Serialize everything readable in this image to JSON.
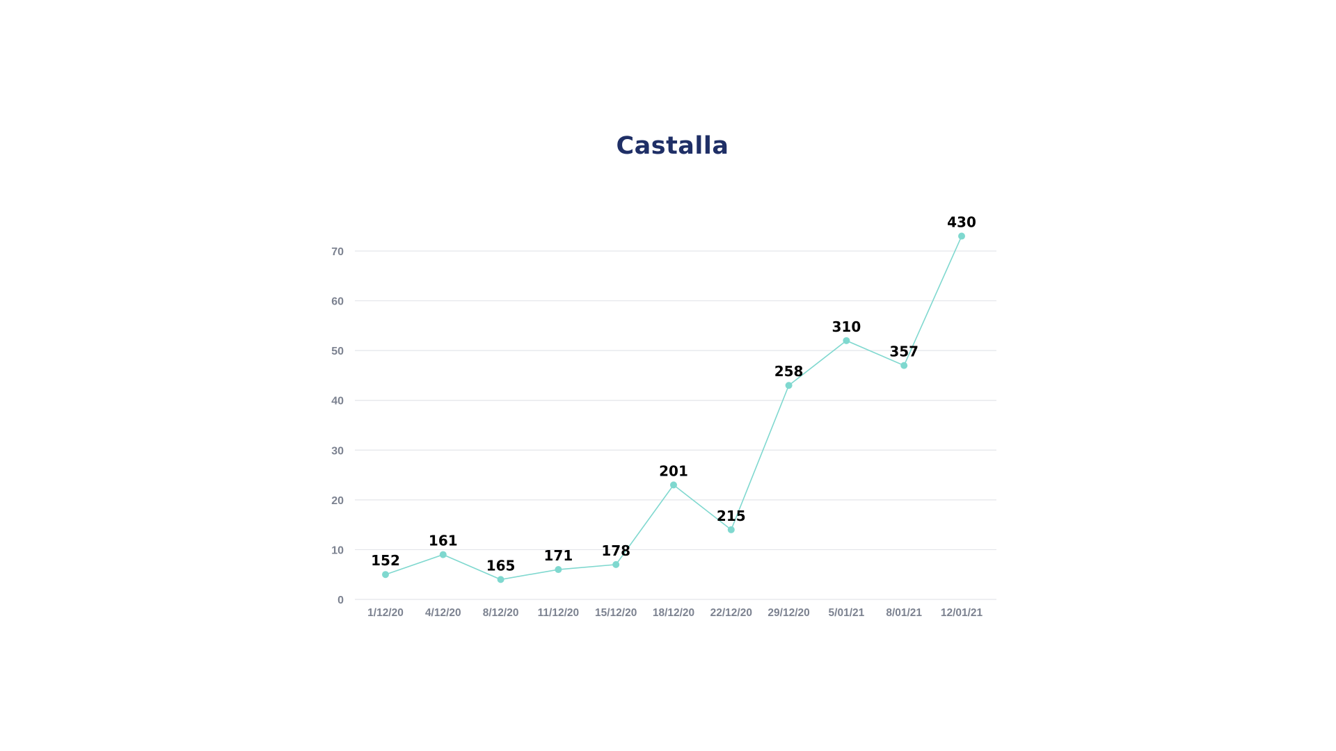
{
  "chart_data": {
    "type": "line",
    "title": "Castalla",
    "xlabel": "",
    "ylabel": "",
    "ylim": [
      0,
      70
    ],
    "yticks": [
      0,
      10,
      20,
      30,
      40,
      50,
      60,
      70
    ],
    "grid": true,
    "categories": [
      "1/12/20",
      "4/12/20",
      "8/12/20",
      "11/12/20",
      "15/12/20",
      "18/12/20",
      "22/12/20",
      "29/12/20",
      "5/01/21",
      "8/01/21",
      "12/01/21"
    ],
    "series": [
      {
        "values": [
          5,
          9,
          4,
          6,
          7,
          23,
          14,
          43,
          52,
          47,
          73
        ],
        "labels": [
          "152",
          "161",
          "165",
          "171",
          "178",
          "201",
          "215",
          "258",
          "310",
          "357",
          "430"
        ],
        "color": "#7fd8cf"
      }
    ]
  }
}
